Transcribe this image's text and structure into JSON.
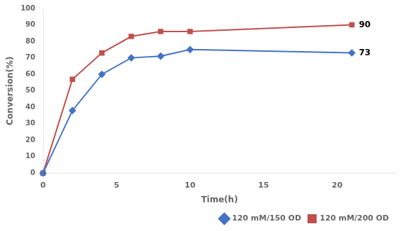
{
  "chart_data": {
    "type": "line",
    "x_label": "Time(h)",
    "y_label": "Conversion(%)",
    "series": [
      {
        "name": "120 mM/150 OD",
        "color": "#4472C4",
        "marker": "diamond",
        "x": [
          0,
          2,
          4,
          6,
          8,
          10,
          21
        ],
        "values": [
          0,
          38,
          60,
          70,
          71,
          75,
          73
        ]
      },
      {
        "name": "120 mM/200 OD",
        "color": "#C0504D",
        "marker": "square",
        "x": [
          0,
          2,
          4,
          6,
          8,
          10,
          21
        ],
        "values": [
          0,
          57,
          73,
          83,
          86,
          86,
          90
        ]
      }
    ],
    "annotations": [
      {
        "text": "73",
        "x": 21,
        "y": 73
      },
      {
        "text": "90",
        "x": 21,
        "y": 90
      }
    ],
    "xlim": [
      0,
      24
    ],
    "ylim": [
      0,
      100
    ],
    "xticks": [
      0,
      5,
      10,
      15,
      20
    ],
    "yticks": [
      0,
      10,
      20,
      30,
      40,
      50,
      60,
      70,
      80,
      90,
      100
    ],
    "grid": false,
    "legend": "lower right"
  }
}
